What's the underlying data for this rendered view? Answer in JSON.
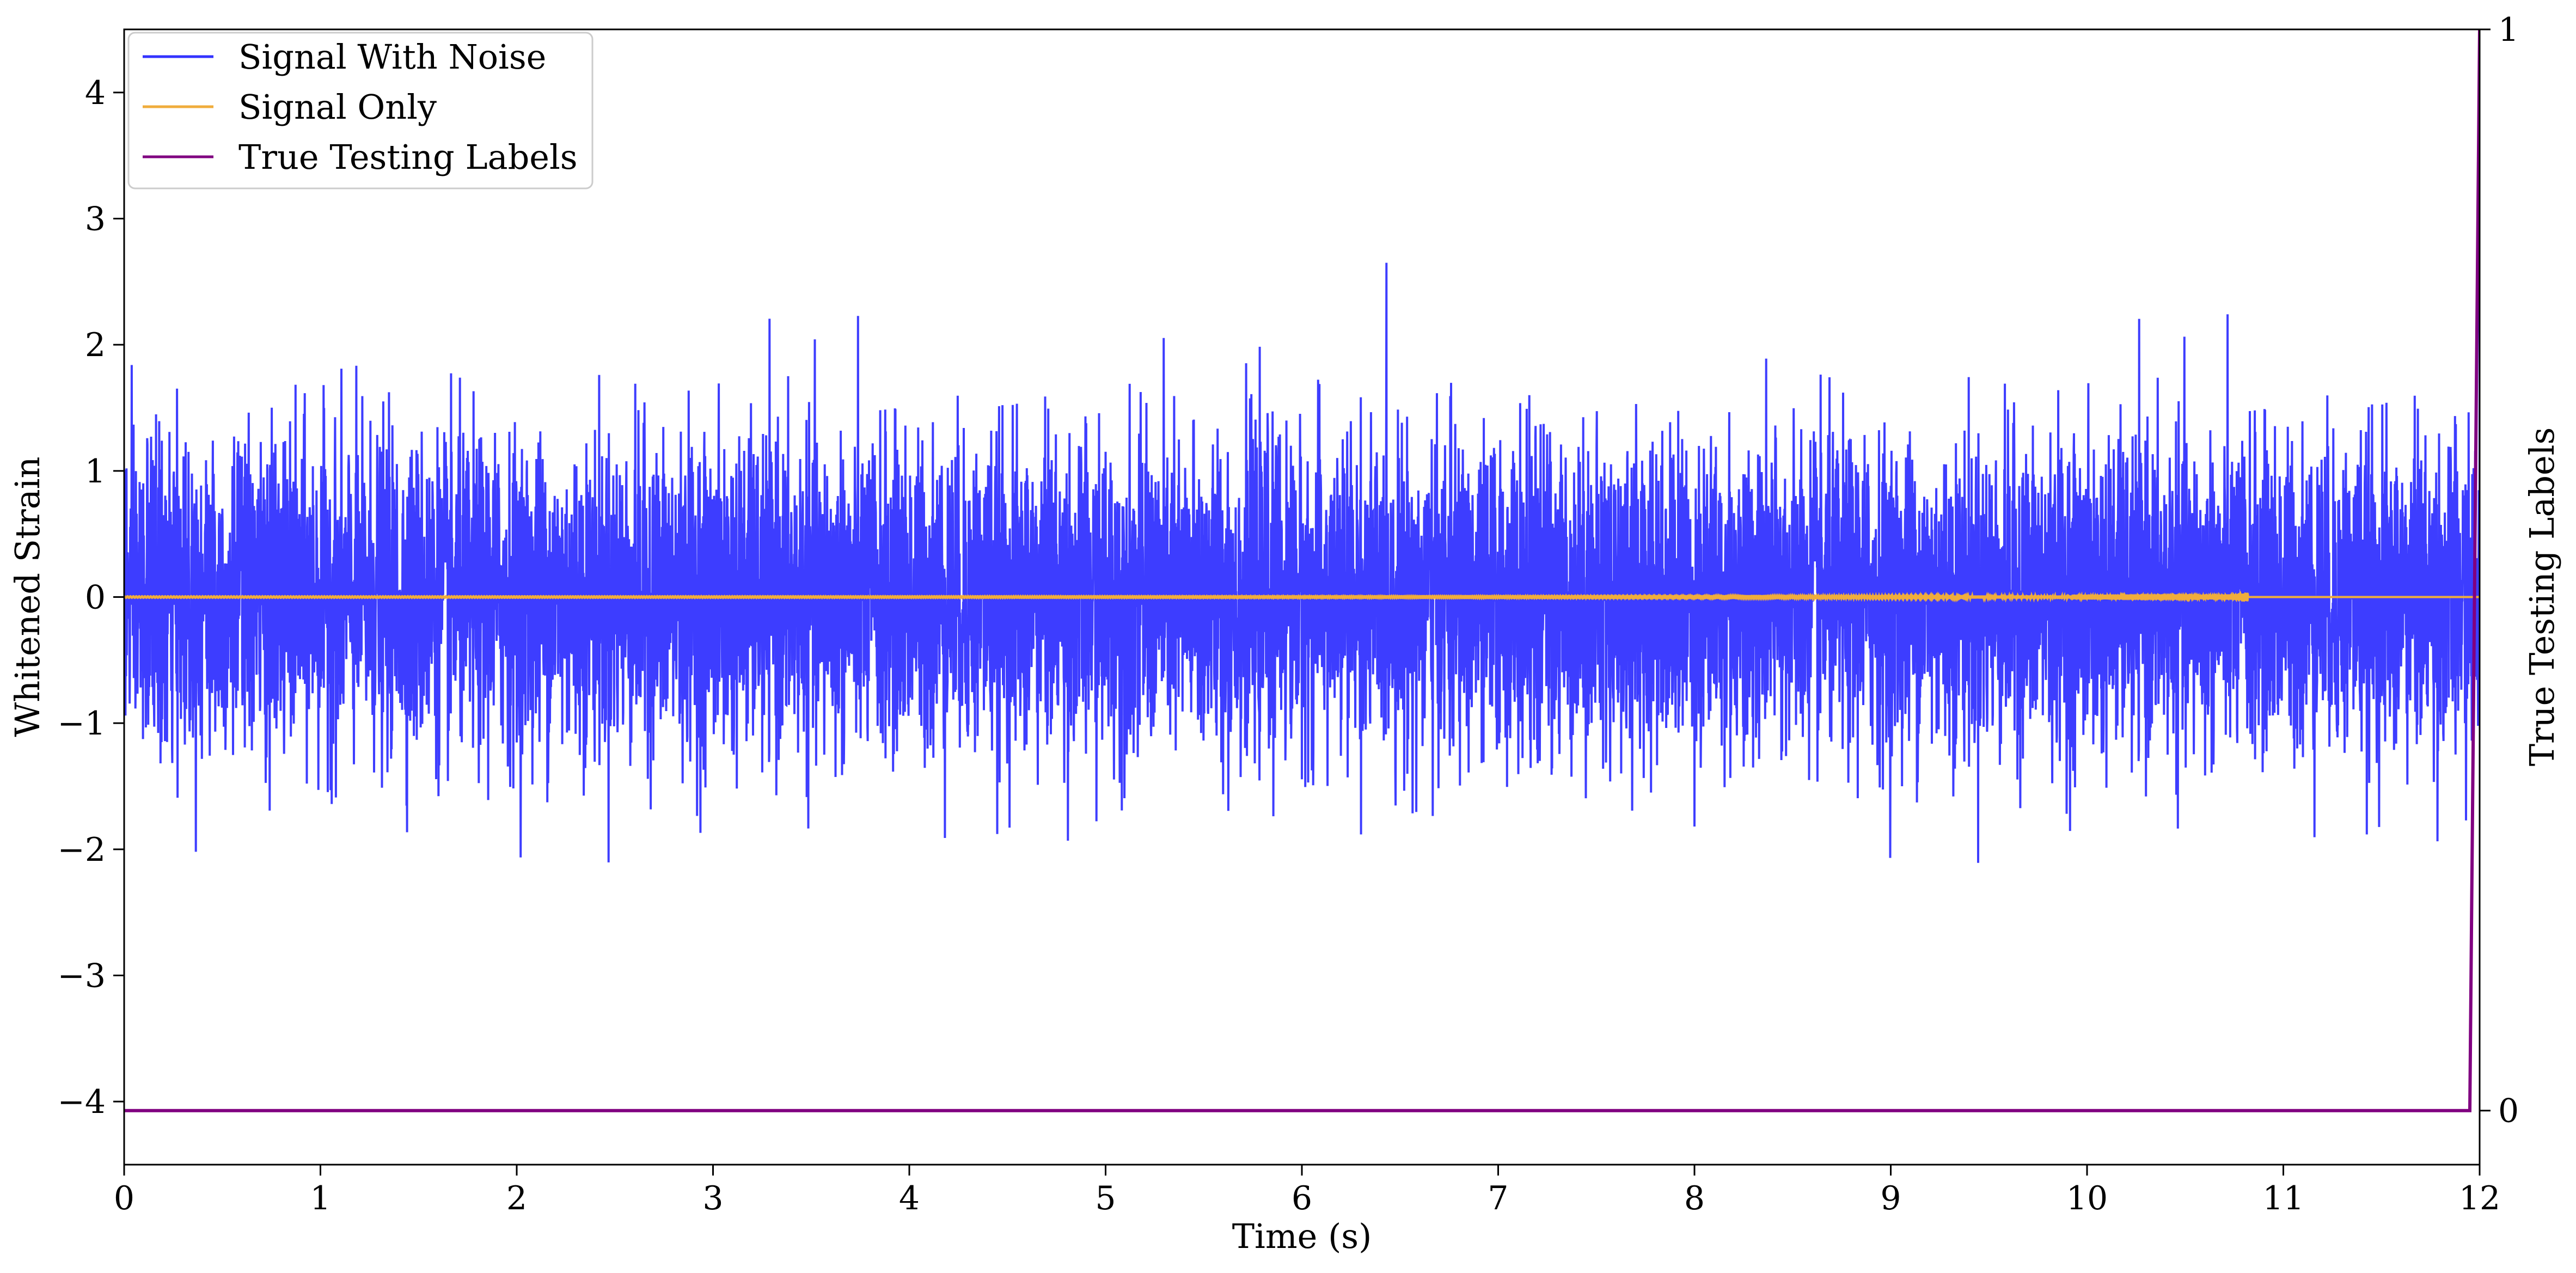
{
  "chart_data": {
    "type": "line",
    "xlabel": "Time (s)",
    "ylabel": "Whitened Strain",
    "ylabel_right": "True Testing Labels",
    "xlim": [
      0,
      12
    ],
    "ylim": [
      -4.5,
      4.5
    ],
    "ylim_right": [
      -0.05,
      1
    ],
    "x_ticks": [
      0,
      1,
      2,
      3,
      4,
      5,
      6,
      7,
      8,
      9,
      10,
      11,
      12
    ],
    "y_ticks": [
      -4,
      -3,
      -2,
      -1,
      0,
      1,
      2,
      3,
      4
    ],
    "y_right_ticks": [
      0,
      1
    ],
    "grid": false,
    "legend_position": "top-left",
    "series": [
      {
        "name": "Signal With Noise",
        "color": "#3333ff",
        "axis": "left",
        "kind": "noise",
        "sigma": 0.62,
        "envelope_peak": 2.85,
        "x_start": 0,
        "x_end": 12
      },
      {
        "name": "Signal Only",
        "color": "#f0ad3c",
        "axis": "left",
        "kind": "chirp",
        "merger_time": 10.82,
        "max_amplitude_positive": 0.73,
        "max_amplitude_negative": -0.74,
        "x_start": 0,
        "x_end": 12
      },
      {
        "name": "True Testing Labels",
        "color": "#800080",
        "axis": "right",
        "kind": "step",
        "x": [
          0,
          11.95,
          12
        ],
        "y": [
          0,
          0,
          1
        ]
      }
    ],
    "x_tick_labels": [
      "0",
      "1",
      "2",
      "3",
      "4",
      "5",
      "6",
      "7",
      "8",
      "9",
      "10",
      "11",
      "12"
    ],
    "y_tick_labels": [
      "−4",
      "−3",
      "−2",
      "−1",
      "0",
      "1",
      "2",
      "3",
      "4"
    ],
    "y_right_tick_labels": [
      "0",
      "1"
    ]
  }
}
